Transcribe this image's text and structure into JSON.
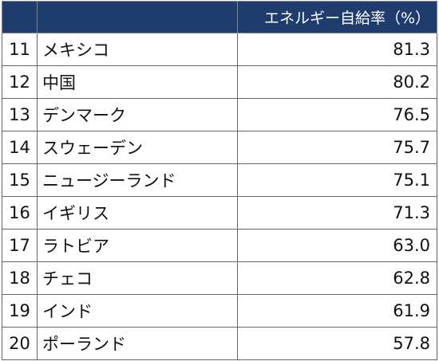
{
  "table": {
    "header": {
      "rank": "",
      "country": "",
      "value": "エネルギー自給率（%）"
    },
    "rows": [
      {
        "rank": "11",
        "country": "メキシコ",
        "value": "81.3"
      },
      {
        "rank": "12",
        "country": "中国",
        "value": "80.2"
      },
      {
        "rank": "13",
        "country": "デンマーク",
        "value": "76.5"
      },
      {
        "rank": "14",
        "country": "スウェーデン",
        "value": "75.7"
      },
      {
        "rank": "15",
        "country": "ニュージーランド",
        "value": "75.1"
      },
      {
        "rank": "16",
        "country": "イギリス",
        "value": "71.3"
      },
      {
        "rank": "17",
        "country": "ラトビア",
        "value": "63.0"
      },
      {
        "rank": "18",
        "country": "チェコ",
        "value": "62.8"
      },
      {
        "rank": "19",
        "country": "インド",
        "value": "61.9"
      },
      {
        "rank": "20",
        "country": "ポーランド",
        "value": "57.8"
      }
    ]
  },
  "colors": {
    "header_background": "#1f3c6e",
    "header_text": "#ffffff",
    "border": "#666666"
  }
}
